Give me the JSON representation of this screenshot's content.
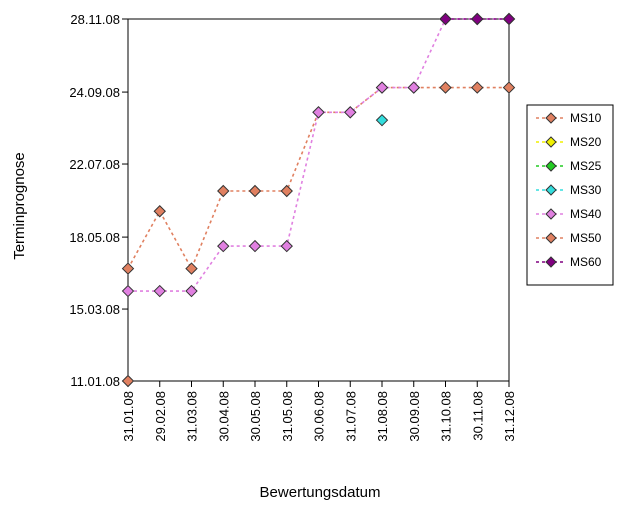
{
  "chart_data": {
    "type": "line",
    "xlabel": "Bewertungsdatum",
    "ylabel": "Terminprognose",
    "categories": [
      "31.01.08",
      "29.02.08",
      "31.03.08",
      "30.04.08",
      "30.05.08",
      "31.05.08",
      "30.06.08",
      "31.07.08",
      "31.08.08",
      "30.09.08",
      "31.10.08",
      "30.11.08",
      "31.12.08"
    ],
    "y_ticks": [
      "11.01.08",
      "15.03.08",
      "18.05.08",
      "22.07.08",
      "24.09.08",
      "28.11.08"
    ],
    "ylim": [
      "11.01.08",
      "28.11.08"
    ],
    "grid": false,
    "legend_position": "right",
    "series": [
      {
        "name": "MS10",
        "color": "#e08060",
        "values": [
          "11.01.08",
          null,
          null,
          null,
          null,
          null,
          null,
          null,
          null,
          null,
          null,
          null,
          null
        ]
      },
      {
        "name": "MS20",
        "color": "#f0f000",
        "values": [
          null,
          null,
          null,
          null,
          null,
          null,
          null,
          null,
          null,
          null,
          null,
          null,
          null
        ]
      },
      {
        "name": "MS25",
        "color": "#22cc22",
        "values": [
          null,
          null,
          null,
          null,
          null,
          null,
          null,
          null,
          null,
          null,
          null,
          null,
          null
        ]
      },
      {
        "name": "MS30",
        "color": "#33dddd",
        "values": [
          null,
          null,
          null,
          null,
          null,
          null,
          null,
          null,
          "30.08.08",
          null,
          null,
          null,
          null
        ]
      },
      {
        "name": "MS40",
        "color": "#e080e0",
        "values": [
          "31.03.08",
          "31.03.08",
          "31.03.08",
          "10.05.08",
          "10.05.08",
          "10.05.08",
          "06.09.08",
          "06.09.08",
          "28.09.08",
          "28.09.08",
          "28.11.08",
          "28.11.08",
          "28.11.08"
        ]
      },
      {
        "name": "MS50",
        "color": "#e08060",
        "values": [
          "20.04.08",
          "10.06.08",
          "20.04.08",
          "28.06.08",
          "28.06.08",
          "28.06.08",
          "06.09.08",
          "06.09.08",
          "28.09.08",
          "28.09.08",
          "28.09.08",
          "28.09.08",
          "28.09.08"
        ]
      },
      {
        "name": "MS60",
        "color": "#800080",
        "values": [
          null,
          null,
          null,
          null,
          null,
          null,
          null,
          null,
          null,
          null,
          "28.11.08",
          "28.11.08",
          "28.11.08"
        ]
      }
    ]
  }
}
